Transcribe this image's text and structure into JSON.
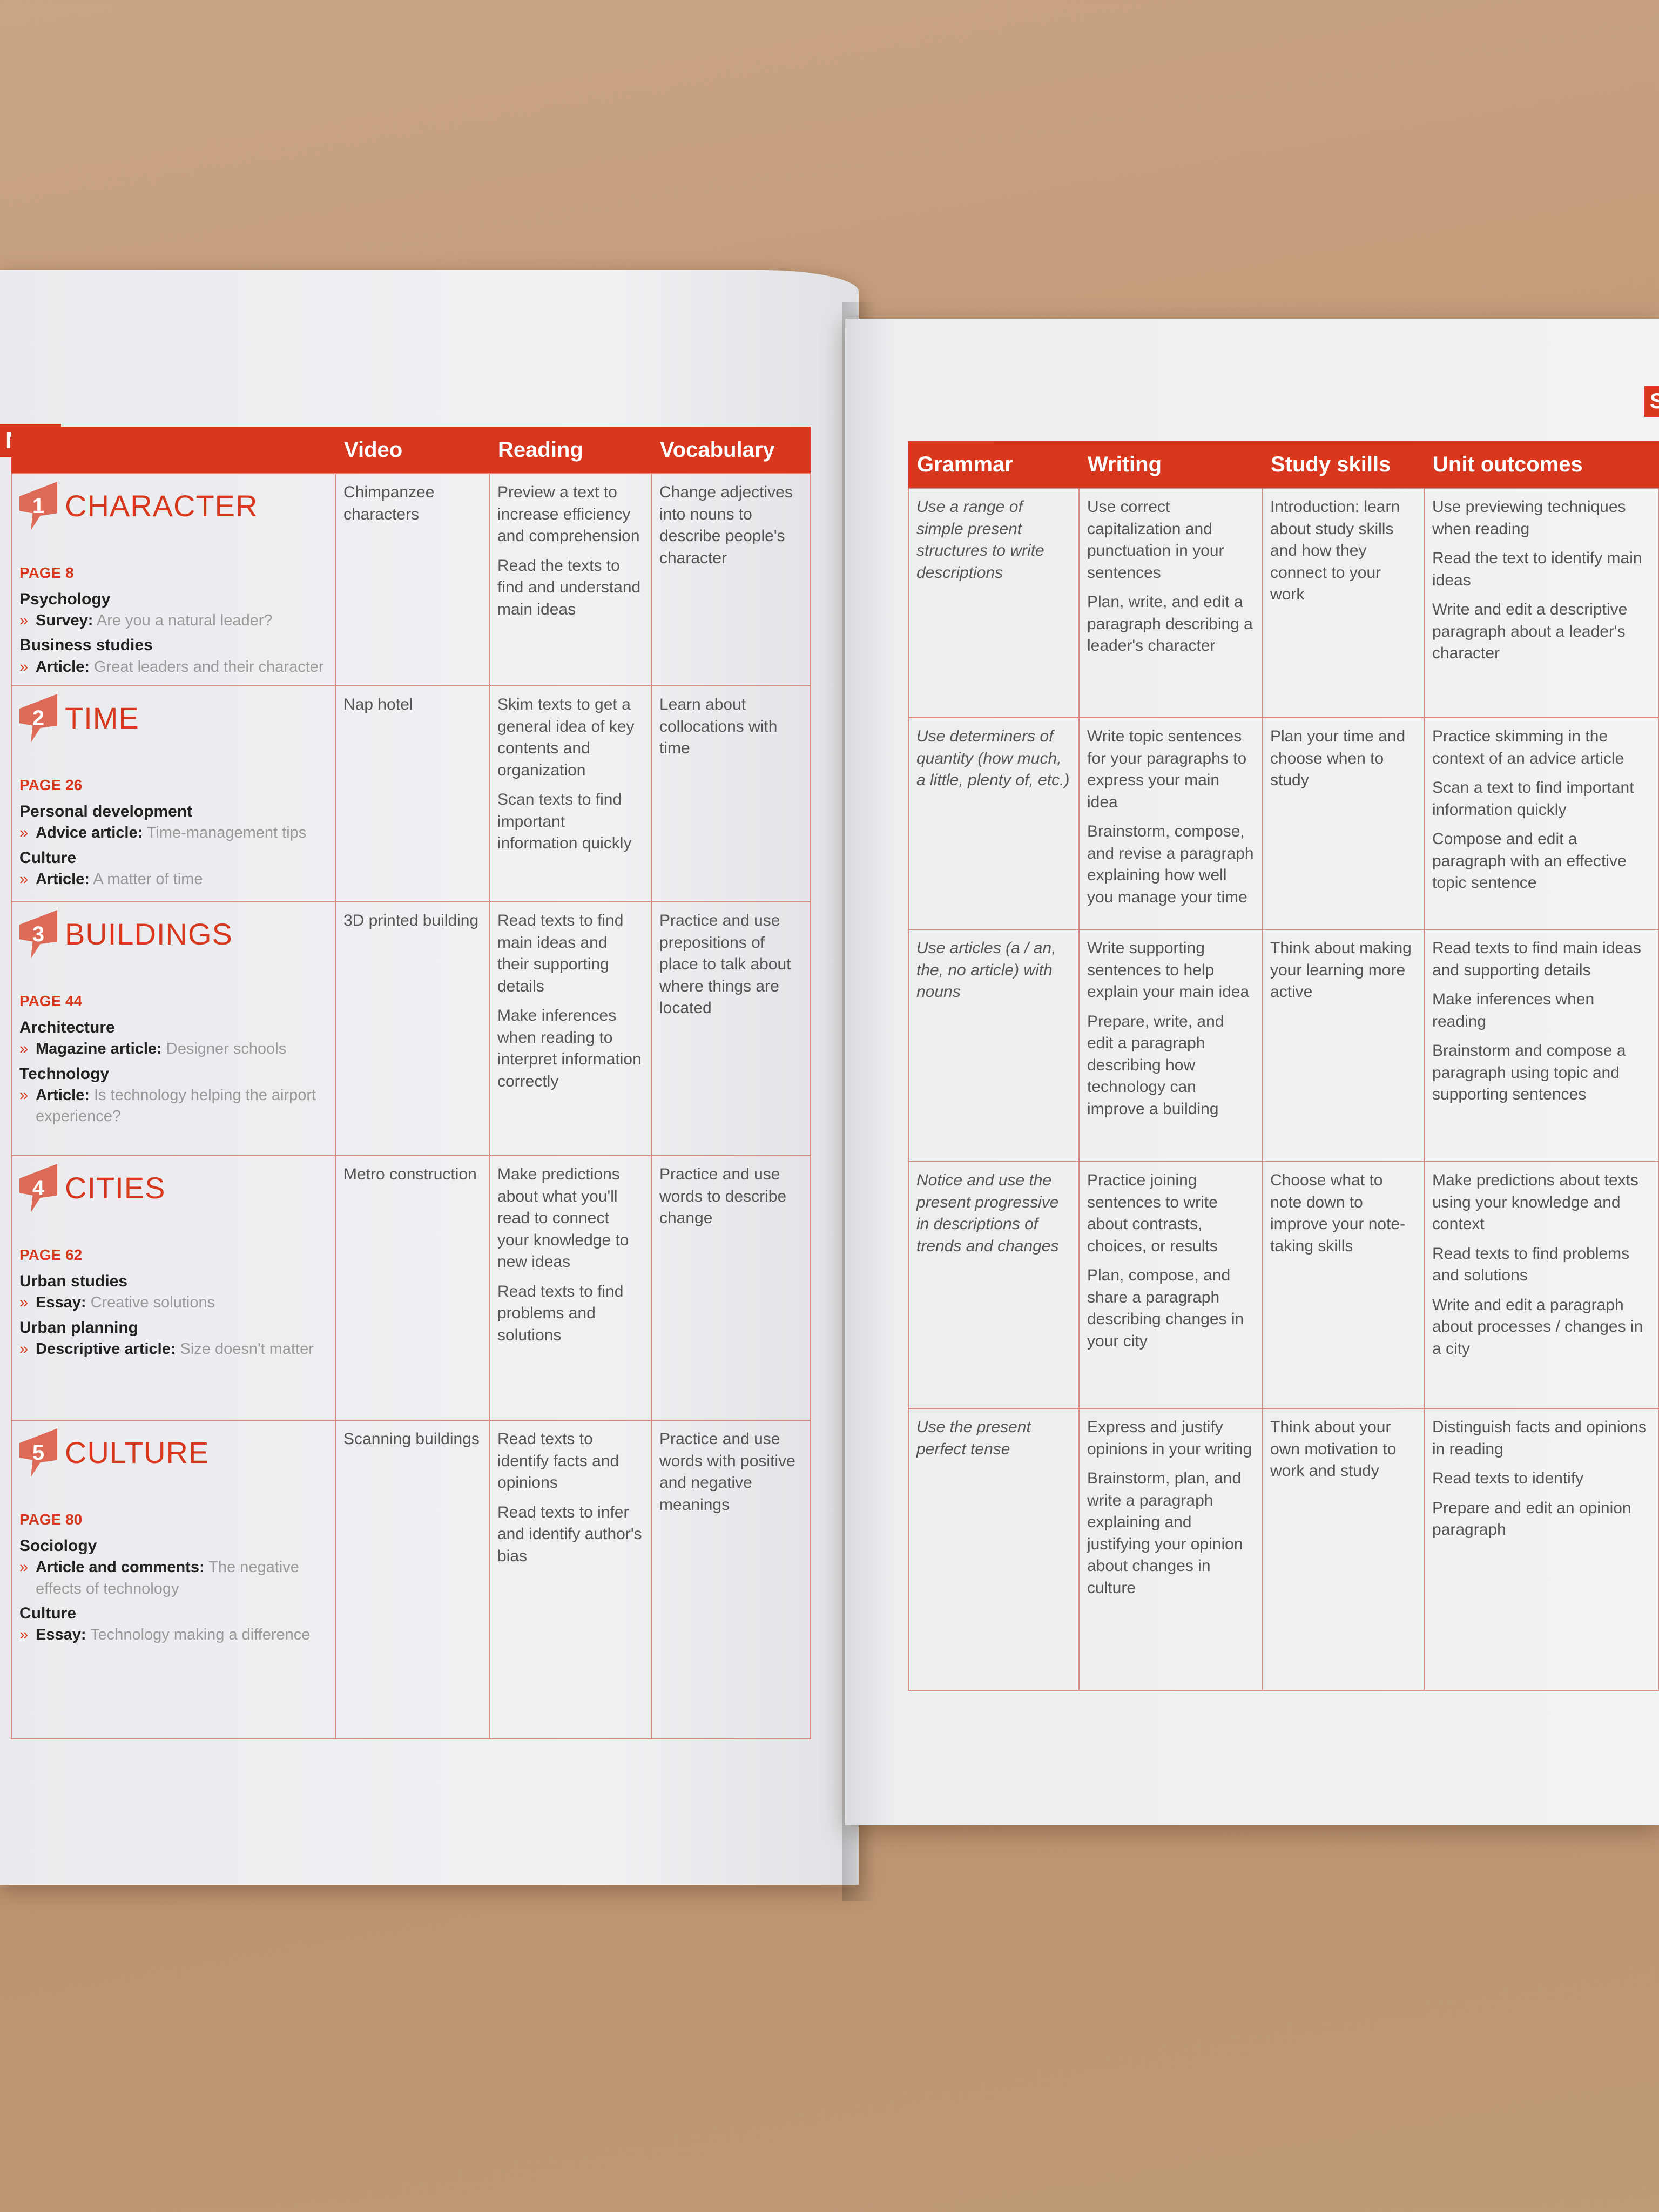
{
  "left_page": {
    "section_tab": "NCE",
    "headers": [
      "",
      "Video",
      "Reading",
      "Vocabulary"
    ],
    "units": [
      {
        "number": "1",
        "title": "CHARACTER",
        "page": "PAGE 8",
        "sources": [
          {
            "subject": "Psychology",
            "type": "Survey:",
            "title": "Are you a natural leader?"
          },
          {
            "subject": "Business studies",
            "type": "Article:",
            "title": "Great leaders and their character"
          }
        ],
        "video": "Chimpanzee characters",
        "reading": [
          "Preview a text to increase efficiency and comprehension",
          "Read the texts to find and understand main ideas"
        ],
        "vocabulary": "Change adjectives into nouns to describe people's character"
      },
      {
        "number": "2",
        "title": "TIME",
        "page": "PAGE 26",
        "sources": [
          {
            "subject": "Personal development",
            "type": "Advice article:",
            "title": "Time-management tips"
          },
          {
            "subject": "Culture",
            "type": "Article:",
            "title": "A matter of time"
          }
        ],
        "video": "Nap hotel",
        "reading": [
          "Skim texts to get a general idea of key contents and organization",
          "Scan texts to find important information quickly"
        ],
        "vocabulary": "Learn about collocations with time"
      },
      {
        "number": "3",
        "title": "BUILDINGS",
        "page": "PAGE 44",
        "sources": [
          {
            "subject": "Architecture",
            "type": "Magazine article:",
            "title": "Designer schools"
          },
          {
            "subject": "Technology",
            "type": "Article:",
            "title": "Is technology helping the airport experience?"
          }
        ],
        "video": "3D printed building",
        "reading": [
          "Read texts to find main ideas and their supporting details",
          "Make inferences when reading to interpret information correctly"
        ],
        "vocabulary": "Practice and use prepositions of place to talk about where things are located"
      },
      {
        "number": "4",
        "title": "CITIES",
        "page": "PAGE 62",
        "sources": [
          {
            "subject": "Urban studies",
            "type": "Essay:",
            "title": "Creative solutions"
          },
          {
            "subject": "Urban planning",
            "type": "Descriptive article:",
            "title": "Size doesn't matter"
          }
        ],
        "video": "Metro construction",
        "reading": [
          "Make predictions about what you'll read to connect your knowledge to new ideas",
          "Read texts to find problems and solutions"
        ],
        "vocabulary": "Practice and use words to describe change"
      },
      {
        "number": "5",
        "title": "CULTURE",
        "page": "PAGE 80",
        "sources": [
          {
            "subject": "Sociology",
            "type": "Article and comments:",
            "title": "The negative effects of technology"
          },
          {
            "subject": "Culture",
            "type": "Essay:",
            "title": "Technology making a difference"
          }
        ],
        "video": "Scanning buildings",
        "reading": [
          "Read texts to identify facts and opinions",
          "Read texts to infer and identify author's bias"
        ],
        "vocabulary": "Practice and use words with positive and negative meanings"
      }
    ]
  },
  "right_page": {
    "section_tab": "S",
    "headers": [
      "Grammar",
      "Writing",
      "Study skills",
      "Unit outcomes"
    ],
    "rows": [
      {
        "grammar": "Use a range of simple present structures to write descriptions",
        "writing": [
          "Use correct capitalization and punctuation in your sentences",
          "Plan, write, and edit a paragraph describing a leader's character"
        ],
        "study_skills": "Introduction: learn about study skills and how they connect to your work",
        "outcomes": [
          "Use previewing techniques when reading",
          "Read the text to identify main ideas",
          "Write and edit a descriptive paragraph about a leader's character"
        ]
      },
      {
        "grammar": "Use determiners of quantity (how much, a little, plenty of, etc.)",
        "writing": [
          "Write topic sentences for your paragraphs to express your main idea",
          "Brainstorm, compose, and revise a paragraph explaining how well you manage your time"
        ],
        "study_skills": "Plan your time and choose when to study",
        "outcomes": [
          "Practice skimming in the context of an advice article",
          "Scan a text to find important information quickly",
          "Compose and edit a paragraph with an effective topic sentence"
        ]
      },
      {
        "grammar": "Use articles (a / an, the, no article) with nouns",
        "writing": [
          "Write supporting sentences to help explain your main idea",
          "Prepare, write, and edit a paragraph describing how technology can improve a building"
        ],
        "study_skills": "Think about making your learning more active",
        "outcomes": [
          "Read texts to find main ideas and supporting details",
          "Make inferences when reading",
          "Brainstorm and compose a paragraph using topic and supporting sentences"
        ]
      },
      {
        "grammar": "Notice and use the present progressive in descriptions of trends and changes",
        "writing": [
          "Practice joining sentences to write about contrasts, choices, or results",
          "Plan, compose, and share a paragraph describing changes in your city"
        ],
        "study_skills": "Choose what to note down to improve your note-taking skills",
        "outcomes": [
          "Make predictions about texts using your knowledge and context",
          "Read texts to find problems and solutions",
          "Write and edit a paragraph about processes / changes in a city"
        ]
      },
      {
        "grammar": "Use the present perfect tense",
        "writing": [
          "Express and justify opinions in your writing",
          "Brainstorm, plan, and write a paragraph explaining and justifying your opinion about changes in culture"
        ],
        "study_skills": "Think about your own motivation to work and study",
        "outcomes": [
          "Distinguish facts and opinions in reading",
          "Read texts to identify",
          "Prepare and edit an opinion paragraph"
        ]
      }
    ]
  },
  "colors": {
    "accent": "#d8381e",
    "rule": "#d98b80",
    "wood": "#c39b78"
  }
}
